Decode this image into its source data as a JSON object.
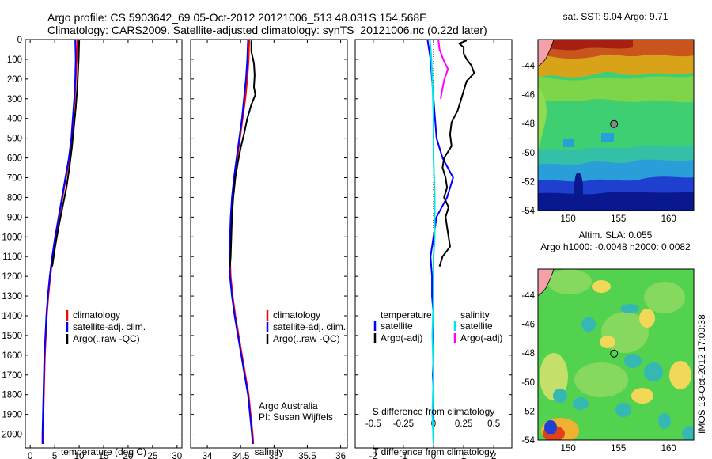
{
  "figure": {
    "title_line1": "Argo profile: CS 5903642_69 05-Oct-2012 20121006_513 48.031S 154.568E",
    "title_line2": "Climatology: CARS2009. Satellite-adjusted climatology: synTS_20121006.nc (0.22d later)",
    "side_stamp": "IMOS 13-Oct-2012 17:00:38",
    "credit_line1": "Argo Australia",
    "credit_line2": "PI: Susan Wijffels"
  },
  "colors": {
    "climatology": "#ff0000",
    "satellite": "#0000ff",
    "argo": "#000000",
    "salinity_satellite": "#00e5e5",
    "salinity_argo": "#ff00ff",
    "float_marker": "#888888"
  },
  "legend_profiles": [
    "climatology",
    "satellite-adj. clim.",
    "Argo(..raw -QC)"
  ],
  "legend_diff": {
    "temperature_head": "temperature",
    "salinity_head": "salinity",
    "satellite": "satellite",
    "argo": "Argo(-adj)"
  },
  "chart_data": [
    {
      "type": "line",
      "id": "temperature",
      "xlabel": "temperature (deg C)",
      "ylabel": "",
      "xlim": [
        -1,
        31
      ],
      "ylim": [
        2070,
        0
      ],
      "xticks": [
        0,
        5,
        10,
        15,
        20,
        25,
        30
      ],
      "yticks": [
        0,
        100,
        200,
        300,
        400,
        500,
        600,
        700,
        800,
        900,
        1000,
        1100,
        1200,
        1300,
        1400,
        1500,
        1600,
        1700,
        1800,
        1900,
        2000
      ],
      "series": [
        {
          "name": "climatology",
          "points": [
            [
              9.6,
              0
            ],
            [
              9.5,
              100
            ],
            [
              9.3,
              200
            ],
            [
              9.1,
              300
            ],
            [
              8.8,
              400
            ],
            [
              8.5,
              500
            ],
            [
              8.0,
              600
            ],
            [
              7.3,
              700
            ],
            [
              6.6,
              800
            ],
            [
              5.9,
              900
            ],
            [
              5.2,
              1000
            ],
            [
              4.6,
              1100
            ],
            [
              4.1,
              1200
            ],
            [
              3.7,
              1300
            ],
            [
              3.4,
              1400
            ],
            [
              3.2,
              1500
            ],
            [
              3.0,
              1600
            ],
            [
              2.9,
              1700
            ],
            [
              2.8,
              1800
            ],
            [
              2.7,
              1900
            ],
            [
              2.6,
              2000
            ],
            [
              2.6,
              2050
            ]
          ]
        },
        {
          "name": "satellite-adj. clim.",
          "points": [
            [
              9.2,
              0
            ],
            [
              9.3,
              100
            ],
            [
              9.2,
              200
            ],
            [
              9.0,
              300
            ],
            [
              8.7,
              400
            ],
            [
              8.4,
              500
            ],
            [
              7.9,
              600
            ],
            [
              7.2,
              700
            ],
            [
              6.5,
              800
            ],
            [
              5.8,
              900
            ],
            [
              5.1,
              1000
            ],
            [
              4.5,
              1100
            ],
            [
              4.0,
              1200
            ],
            [
              3.6,
              1300
            ],
            [
              3.3,
              1400
            ],
            [
              3.1,
              1500
            ],
            [
              2.9,
              1600
            ],
            [
              2.8,
              1700
            ],
            [
              2.7,
              1800
            ],
            [
              2.6,
              1900
            ],
            [
              2.5,
              2000
            ],
            [
              2.5,
              2050
            ]
          ]
        },
        {
          "name": "Argo(..raw -QC)",
          "points": [
            [
              10.0,
              5
            ],
            [
              9.9,
              100
            ],
            [
              9.8,
              150
            ],
            [
              9.6,
              250
            ],
            [
              9.3,
              350
            ],
            [
              8.9,
              450
            ],
            [
              8.5,
              550
            ],
            [
              8.0,
              650
            ],
            [
              7.4,
              750
            ],
            [
              6.6,
              850
            ],
            [
              5.8,
              950
            ],
            [
              5.1,
              1050
            ],
            [
              4.5,
              1150
            ]
          ]
        }
      ]
    },
    {
      "type": "line",
      "id": "salinity",
      "xlabel": "salinity",
      "ylabel": "",
      "xlim": [
        33.75,
        36.1
      ],
      "ylim": [
        2070,
        0
      ],
      "xticks": [
        34,
        34.5,
        35,
        35.5,
        36
      ],
      "series": [
        {
          "name": "climatology",
          "points": [
            [
              34.63,
              0
            ],
            [
              34.62,
              100
            ],
            [
              34.6,
              200
            ],
            [
              34.57,
              300
            ],
            [
              34.53,
              400
            ],
            [
              34.49,
              500
            ],
            [
              34.45,
              600
            ],
            [
              34.41,
              700
            ],
            [
              34.38,
              800
            ],
            [
              34.36,
              900
            ],
            [
              34.35,
              1000
            ],
            [
              34.34,
              1100
            ],
            [
              34.35,
              1200
            ],
            [
              34.38,
              1300
            ],
            [
              34.42,
              1400
            ],
            [
              34.47,
              1500
            ],
            [
              34.52,
              1600
            ],
            [
              34.57,
              1700
            ],
            [
              34.62,
              1800
            ],
            [
              34.65,
              1900
            ],
            [
              34.68,
              2000
            ],
            [
              34.69,
              2050
            ]
          ]
        },
        {
          "name": "satellite-adj. clim.",
          "points": [
            [
              34.61,
              0
            ],
            [
              34.6,
              100
            ],
            [
              34.58,
              200
            ],
            [
              34.55,
              300
            ],
            [
              34.52,
              400
            ],
            [
              34.48,
              500
            ],
            [
              34.44,
              600
            ],
            [
              34.4,
              700
            ],
            [
              34.37,
              800
            ],
            [
              34.35,
              900
            ],
            [
              34.34,
              1000
            ],
            [
              34.33,
              1100
            ],
            [
              34.34,
              1200
            ],
            [
              34.37,
              1300
            ],
            [
              34.41,
              1400
            ],
            [
              34.46,
              1500
            ],
            [
              34.51,
              1600
            ],
            [
              34.56,
              1700
            ],
            [
              34.61,
              1800
            ],
            [
              34.64,
              1900
            ],
            [
              34.67,
              2000
            ],
            [
              34.68,
              2050
            ]
          ]
        },
        {
          "name": "Argo(..raw -QC)",
          "points": [
            [
              34.66,
              5
            ],
            [
              34.66,
              60
            ],
            [
              34.7,
              120
            ],
            [
              34.71,
              180
            ],
            [
              34.7,
              240
            ],
            [
              34.72,
              280
            ],
            [
              34.66,
              330
            ],
            [
              34.6,
              400
            ],
            [
              34.55,
              480
            ],
            [
              34.5,
              550
            ],
            [
              34.46,
              620
            ],
            [
              34.42,
              700
            ],
            [
              34.39,
              800
            ],
            [
              34.37,
              900
            ],
            [
              34.36,
              1000
            ],
            [
              34.35,
              1100
            ],
            [
              34.34,
              1150
            ]
          ]
        }
      ]
    },
    {
      "type": "line",
      "id": "difference",
      "xlabel": "T difference from climatology",
      "xlabel_top": "S difference from climatology",
      "ylabel": "",
      "xlim": [
        -2.6,
        2.6
      ],
      "ylim": [
        2070,
        0
      ],
      "xticks": [
        -2,
        -1,
        0,
        1,
        2
      ],
      "xticks_secondary": [
        -0.5,
        -0.25,
        0,
        0.25,
        0.5
      ],
      "series": [
        {
          "name": "temperature satellite",
          "points": [
            [
              -0.2,
              0
            ],
            [
              -0.15,
              50
            ],
            [
              -0.1,
              100
            ],
            [
              -0.05,
              200
            ],
            [
              0.0,
              300
            ],
            [
              0.05,
              400
            ],
            [
              0.1,
              500
            ],
            [
              0.3,
              600
            ],
            [
              0.65,
              700
            ],
            [
              0.45,
              800
            ],
            [
              0.1,
              900
            ],
            [
              0.0,
              1000
            ],
            [
              -0.1,
              1100
            ],
            [
              -0.05,
              1200
            ],
            [
              -0.05,
              1300
            ],
            [
              0.0,
              1400
            ],
            [
              -0.02,
              1500
            ],
            [
              0.0,
              1600
            ],
            [
              -0.02,
              1700
            ],
            [
              0.0,
              1800
            ],
            [
              -0.02,
              1900
            ],
            [
              0.0,
              2050
            ]
          ]
        },
        {
          "name": "temperature Argo(-adj)",
          "points": [
            [
              1.1,
              5
            ],
            [
              0.85,
              20
            ],
            [
              1.0,
              40
            ],
            [
              1.0,
              70
            ],
            [
              1.1,
              100
            ],
            [
              1.25,
              130
            ],
            [
              1.35,
              170
            ],
            [
              1.1,
              210
            ],
            [
              1.0,
              260
            ],
            [
              0.9,
              310
            ],
            [
              0.8,
              360
            ],
            [
              0.6,
              420
            ],
            [
              0.55,
              480
            ],
            [
              0.6,
              540
            ],
            [
              0.35,
              600
            ],
            [
              0.3,
              650
            ],
            [
              0.4,
              700
            ],
            [
              0.45,
              750
            ],
            [
              0.35,
              800
            ],
            [
              0.5,
              850
            ],
            [
              0.4,
              900
            ],
            [
              0.45,
              950
            ],
            [
              0.5,
              1000
            ],
            [
              0.55,
              1050
            ],
            [
              0.3,
              1100
            ],
            [
              0.2,
              1150
            ]
          ]
        },
        {
          "name": "salinity satellite",
          "points": [
            [
              -0.03,
              0
            ],
            [
              -0.02,
              80
            ],
            [
              -0.01,
              200
            ],
            [
              0.0,
              400
            ],
            [
              0.0,
              600
            ],
            [
              0.01,
              800
            ],
            [
              0.01,
              1000
            ],
            [
              0.0,
              1100
            ],
            [
              0.0,
              1300
            ],
            [
              -0.01,
              1500
            ],
            [
              0.0,
              1700
            ],
            [
              -0.01,
              1900
            ],
            [
              0.0,
              2050
            ]
          ]
        },
        {
          "name": "salinity Argo(-adj)",
          "points": [
            [
              0.04,
              0
            ],
            [
              0.05,
              50
            ],
            [
              0.08,
              100
            ],
            [
              0.12,
              150
            ],
            [
              0.09,
              200
            ],
            [
              0.07,
              260
            ],
            [
              0.06,
              300
            ]
          ]
        }
      ]
    },
    {
      "type": "heatmap",
      "id": "sst-map",
      "title": "sat. SST: 9.04  Argo: 9.71",
      "xlim": [
        147,
        162.5
      ],
      "ylim": [
        -54,
        -42.2
      ],
      "xticks": [
        150,
        155,
        160
      ],
      "yticks": [
        -44,
        -46,
        -48,
        -50,
        -52,
        -54
      ],
      "float_position": [
        154.568,
        -48.031
      ]
    },
    {
      "type": "heatmap",
      "id": "sla-map",
      "title_line1": "Altim. SLA: 0.055",
      "title_line2": "Argo h1000: -0.0048  h2000: 0.0082",
      "xlim": [
        147,
        162.5
      ],
      "ylim": [
        -54,
        -42.2
      ],
      "xticks": [
        150,
        155,
        160
      ],
      "yticks": [
        -44,
        -46,
        -48,
        -50,
        -52,
        -54
      ],
      "float_position": [
        154.568,
        -48.031
      ]
    }
  ]
}
